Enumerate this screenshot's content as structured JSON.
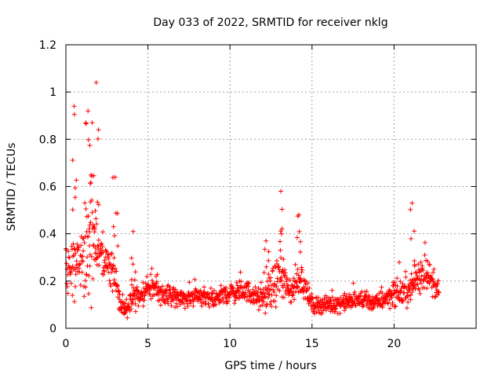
{
  "chart_data": {
    "type": "scatter",
    "title": "Day 033 of 2022, SRMTID for receiver nklg",
    "xlabel": "GPS time / hours",
    "ylabel": "SRMTID / TECUs",
    "xlim": [
      0,
      25
    ],
    "ylim": [
      0,
      1.2
    ],
    "x_ticks": [
      0,
      5,
      10,
      15,
      20
    ],
    "x_tick_labels": [
      "0",
      "5",
      "10",
      "15",
      "20"
    ],
    "y_ticks": [
      0,
      0.2,
      0.4,
      0.6,
      0.8,
      1,
      1.2
    ],
    "y_tick_labels": [
      "0",
      "0.2",
      "0.4",
      "0.6",
      "0.8",
      "1",
      "1.2"
    ],
    "grid": true,
    "marker": "+",
    "series": [
      {
        "name": "SRMTID",
        "color": "#ff0000",
        "profile": {
          "x": [
            0.0,
            0.3,
            0.6,
            1.0,
            1.3,
            1.6,
            1.9,
            2.2,
            2.6,
            2.9,
            3.1,
            3.3,
            3.6,
            4.0,
            4.5,
            5.0,
            6.0,
            7.0,
            8.0,
            9.0,
            10.0,
            11.0,
            11.8,
            12.3,
            12.7,
            13.0,
            13.3,
            13.6,
            14.0,
            14.3,
            14.6,
            15.0,
            16.0,
            17.0,
            18.0,
            18.7,
            19.0,
            19.5,
            20.0,
            20.5,
            21.0,
            21.3,
            21.6,
            22.0,
            22.3,
            22.6,
            22.75
          ],
          "y": [
            0.22,
            0.25,
            0.26,
            0.3,
            0.33,
            0.35,
            0.36,
            0.3,
            0.26,
            0.25,
            0.18,
            0.1,
            0.08,
            0.12,
            0.14,
            0.17,
            0.14,
            0.13,
            0.13,
            0.13,
            0.15,
            0.16,
            0.12,
            0.14,
            0.18,
            0.22,
            0.2,
            0.15,
            0.18,
            0.22,
            0.17,
            0.1,
            0.1,
            0.11,
            0.12,
            0.11,
            0.11,
            0.13,
            0.15,
            0.15,
            0.16,
            0.2,
            0.22,
            0.25,
            0.19,
            0.17,
            0.15
          ],
          "spread": [
            0.12,
            0.12,
            0.14,
            0.2,
            0.24,
            0.24,
            0.22,
            0.14,
            0.1,
            0.1,
            0.08,
            0.05,
            0.05,
            0.06,
            0.06,
            0.06,
            0.05,
            0.04,
            0.04,
            0.04,
            0.05,
            0.05,
            0.05,
            0.07,
            0.1,
            0.1,
            0.09,
            0.06,
            0.07,
            0.09,
            0.06,
            0.04,
            0.04,
            0.04,
            0.04,
            0.04,
            0.04,
            0.05,
            0.06,
            0.06,
            0.06,
            0.08,
            0.08,
            0.08,
            0.06,
            0.05,
            0.04
          ]
        },
        "peaks": [
          {
            "x": 1.85,
            "y": 1.04
          },
          {
            "x": 1.6,
            "y": 0.87
          },
          {
            "x": 1.35,
            "y": 0.92
          },
          {
            "x": 0.5,
            "y": 0.94
          },
          {
            "x": 3.0,
            "y": 0.64
          },
          {
            "x": 4.1,
            "y": 0.41
          },
          {
            "x": 12.2,
            "y": 0.37
          },
          {
            "x": 13.1,
            "y": 0.58
          },
          {
            "x": 14.2,
            "y": 0.48
          },
          {
            "x": 21.1,
            "y": 0.53
          }
        ]
      }
    ]
  }
}
